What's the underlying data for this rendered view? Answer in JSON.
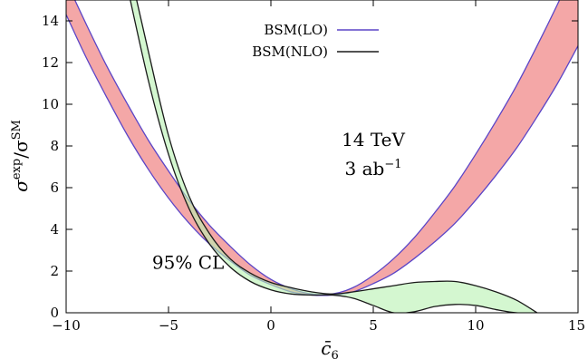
{
  "chart_data": {
    "type": "area",
    "xlabel_main": "c̄",
    "xlabel_sub": "6",
    "ylabel_parts": [
      "σ",
      "exp",
      "/σ",
      "SM"
    ],
    "xlim": [
      -10,
      15
    ],
    "ylim": [
      0,
      15
    ],
    "xticks": [
      -10,
      -5,
      0,
      5,
      10,
      15
    ],
    "xtick_labels": [
      "−10",
      "−5",
      "0",
      "5",
      "10",
      "15"
    ],
    "yticks": [
      0,
      2,
      4,
      6,
      8,
      10,
      12,
      14
    ],
    "ytick_labels": [
      "0",
      "2",
      "4",
      "6",
      "8",
      "10",
      "12",
      "14"
    ],
    "grid": false,
    "legend_position": "top-center",
    "series": [
      {
        "name": "BSM(LO)",
        "line_color": "#5b45c7",
        "fill_color": "#f4a7a7",
        "band": {
          "x": [
            -10,
            -9,
            -8,
            -7,
            -6,
            -5,
            -4,
            -3,
            -2,
            -1,
            0,
            1,
            2,
            3,
            4,
            5,
            6,
            7,
            8,
            9,
            10,
            11,
            12,
            13,
            14,
            15
          ],
          "lower": [
            14.3,
            12.2,
            10.3,
            8.5,
            6.9,
            5.5,
            4.3,
            3.3,
            2.5,
            1.8,
            1.35,
            1.0,
            0.85,
            0.85,
            1.0,
            1.4,
            1.9,
            2.6,
            3.4,
            4.3,
            5.4,
            6.6,
            7.9,
            9.4,
            11.0,
            12.8
          ],
          "upper": [
            15.9,
            13.8,
            11.8,
            10.0,
            8.3,
            6.8,
            5.4,
            4.2,
            3.2,
            2.3,
            1.6,
            1.15,
            0.9,
            0.9,
            1.2,
            1.8,
            2.6,
            3.6,
            4.8,
            6.1,
            7.6,
            9.2,
            10.9,
            12.8,
            14.8,
            16.9
          ]
        }
      },
      {
        "name": "BSM(NLO)",
        "line_color": "#1a1a1a",
        "fill_color": "#b8f2b0",
        "band": {
          "x": [
            -7.2,
            -6,
            -5,
            -4,
            -3,
            -2,
            -1,
            0,
            1,
            2,
            3,
            4,
            5,
            6,
            7,
            8,
            9,
            10,
            11,
            12,
            13
          ],
          "lower": [
            16.5,
            11.2,
            7.6,
            5.0,
            3.3,
            2.2,
            1.5,
            1.1,
            0.9,
            0.85,
            0.85,
            0.7,
            0.35,
            0.0,
            0.05,
            0.3,
            0.4,
            0.35,
            0.15,
            0.0,
            0.0
          ],
          "upper": [
            17.8,
            12.6,
            8.5,
            5.6,
            3.8,
            2.6,
            1.9,
            1.45,
            1.2,
            1.0,
            0.9,
            1.0,
            1.15,
            1.3,
            1.45,
            1.5,
            1.5,
            1.3,
            1.0,
            0.6,
            0.0
          ]
        }
      }
    ],
    "annotations": [
      {
        "text": "14 TeV",
        "x": 5,
        "y": 8.0
      },
      {
        "text": "3 ab",
        "sup": "−1",
        "x": 5,
        "y": 6.6
      },
      {
        "text": "95% CL",
        "x": -5.8,
        "y": 2.1
      }
    ]
  }
}
